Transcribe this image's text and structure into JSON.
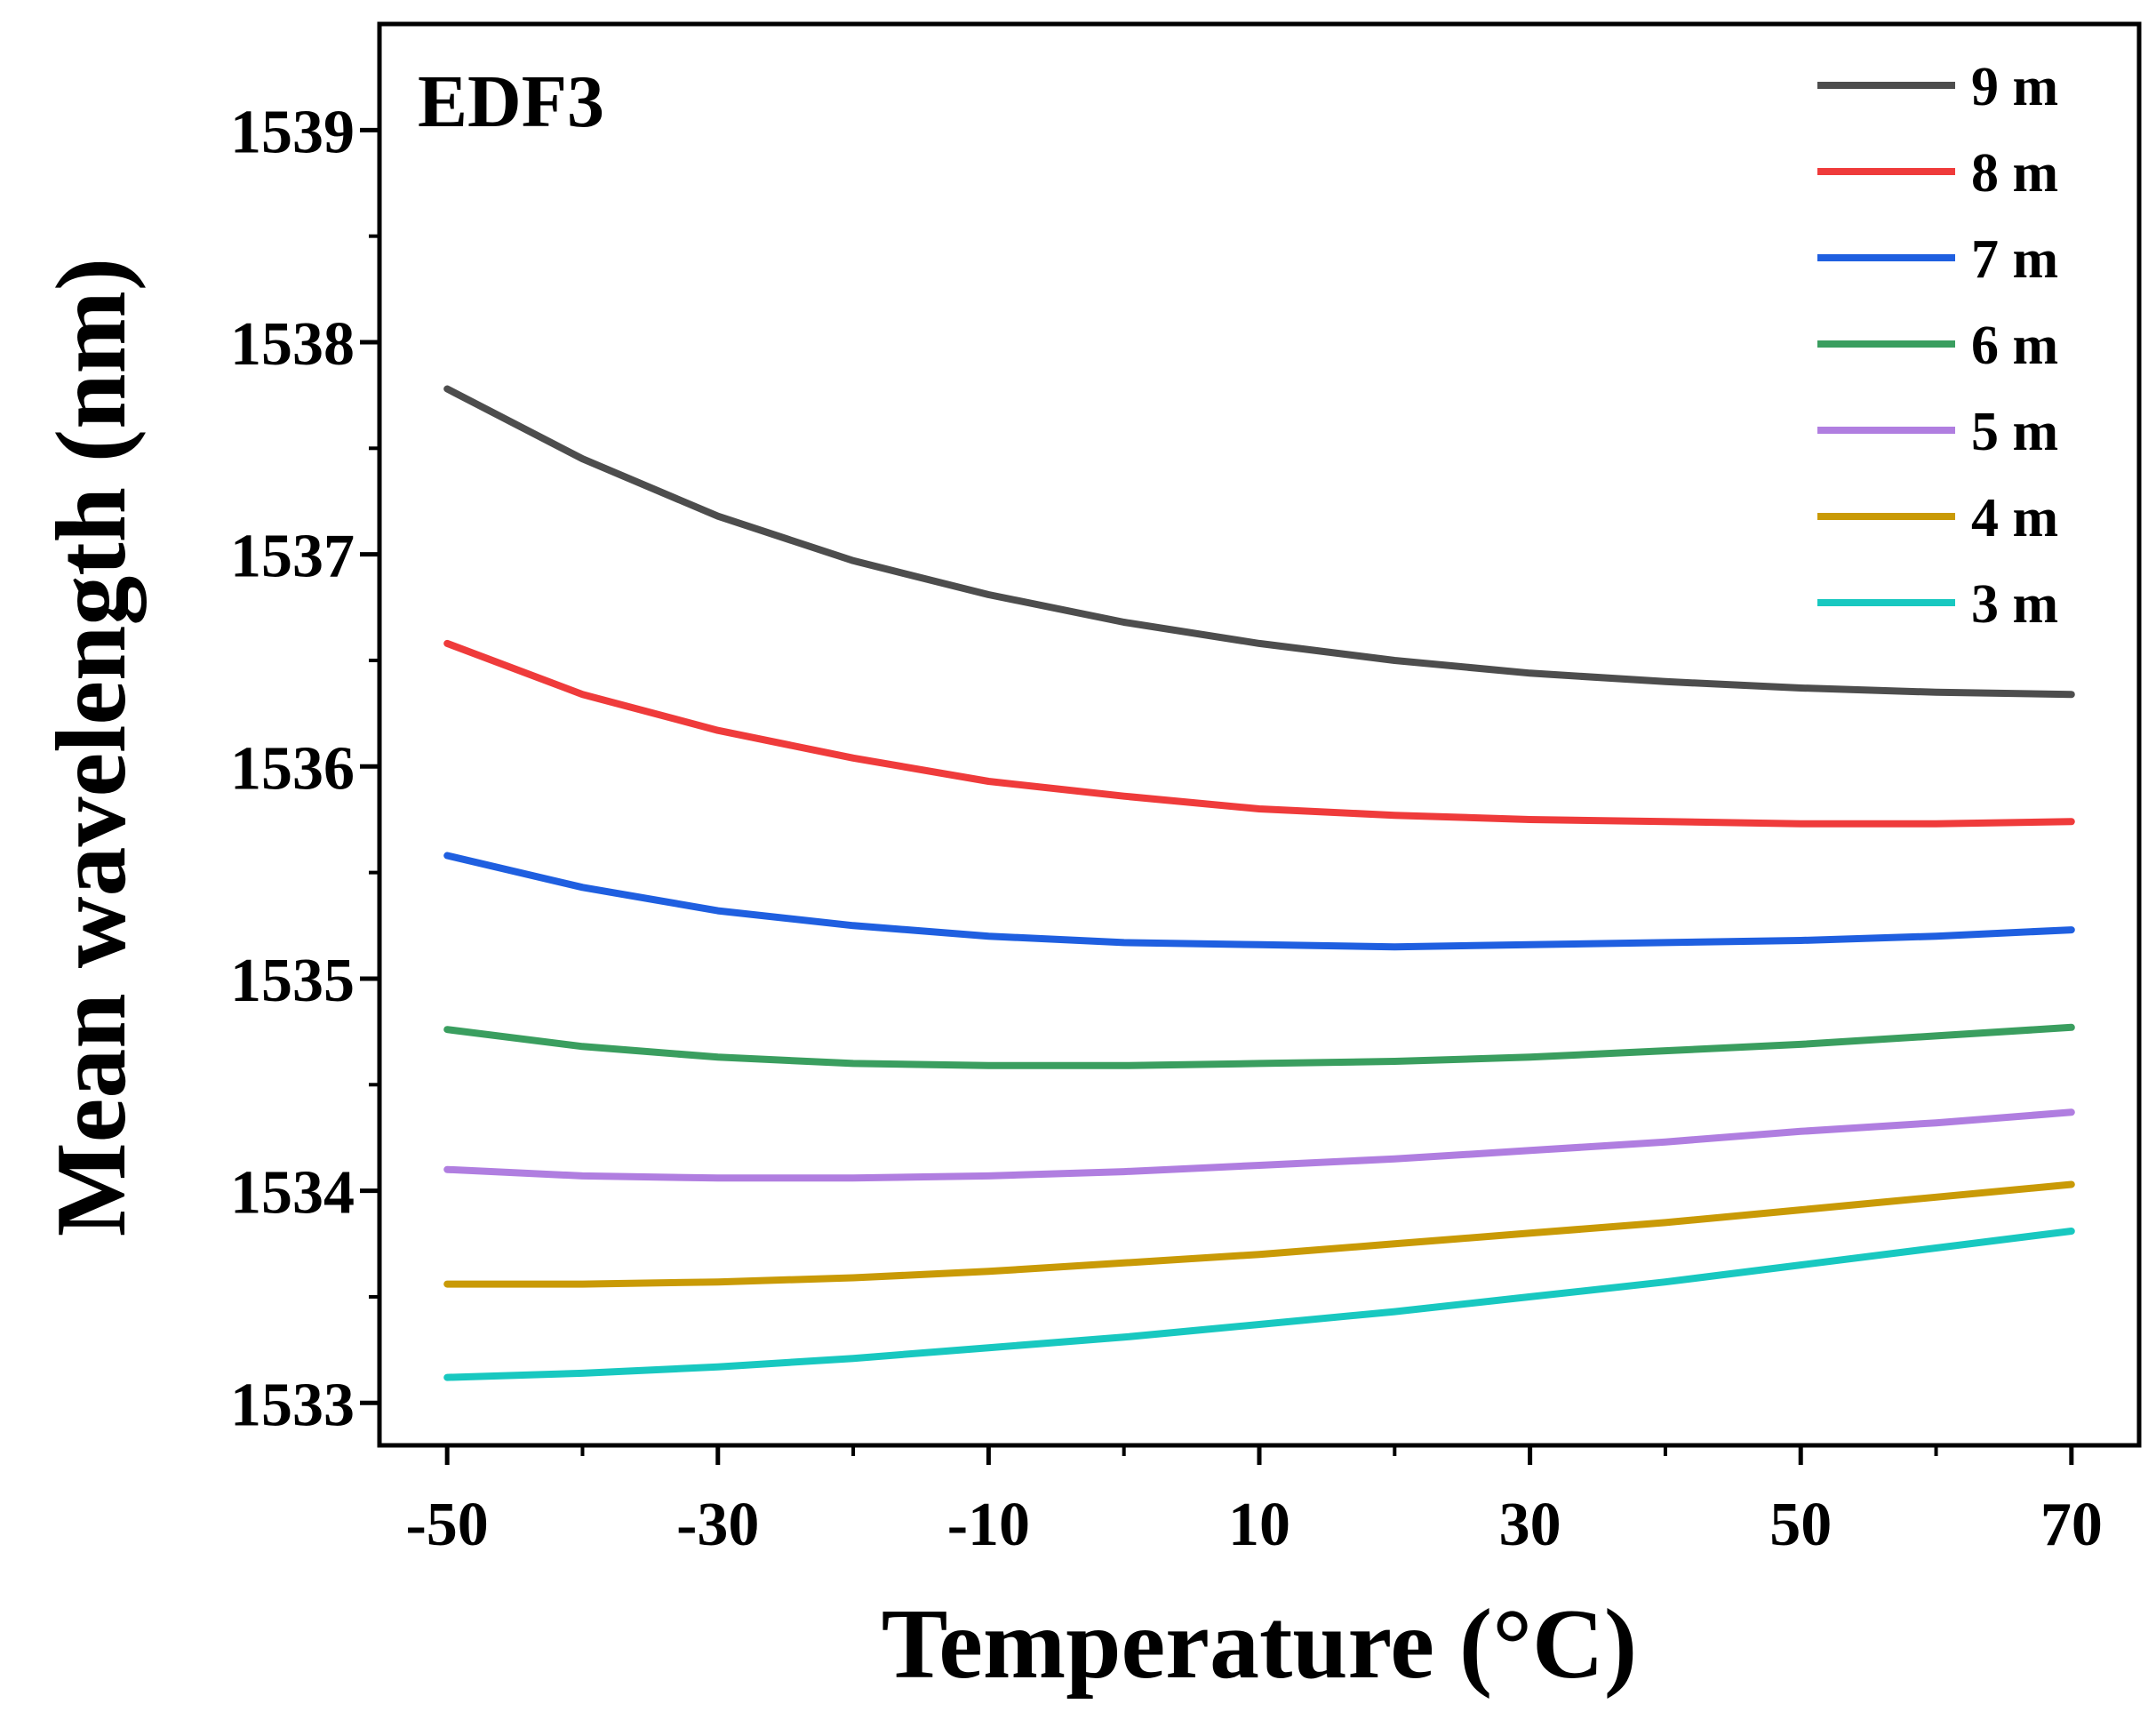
{
  "chart_data": {
    "type": "line",
    "title": "",
    "annotation": "EDF3",
    "xlabel": "Temperature (°C)",
    "ylabel": "Mean wavelength (nm)",
    "xlim": [
      -55,
      75
    ],
    "ylim": [
      1532.8,
      1539.5
    ],
    "xticks": [
      -50,
      -30,
      -10,
      10,
      30,
      50,
      70
    ],
    "yticks": [
      1533,
      1534,
      1535,
      1536,
      1537,
      1538,
      1539
    ],
    "legend_position": "top-right",
    "x": [
      -50,
      -40,
      -30,
      -20,
      -10,
      0,
      10,
      20,
      30,
      40,
      50,
      60,
      70
    ],
    "series": [
      {
        "name": "9 m",
        "color": "#4d4d4d",
        "values": [
          1537.78,
          1537.45,
          1537.18,
          1536.97,
          1536.81,
          1536.68,
          1536.58,
          1536.5,
          1536.44,
          1536.4,
          1536.37,
          1536.35,
          1536.34
        ]
      },
      {
        "name": "8 m",
        "color": "#ef3b3b",
        "values": [
          1536.58,
          1536.34,
          1536.17,
          1536.04,
          1535.93,
          1535.86,
          1535.8,
          1535.77,
          1535.75,
          1535.74,
          1535.73,
          1535.73,
          1535.74
        ]
      },
      {
        "name": "7 m",
        "color": "#1f5fe0",
        "values": [
          1535.58,
          1535.43,
          1535.32,
          1535.25,
          1535.2,
          1535.17,
          1535.16,
          1535.15,
          1535.16,
          1535.17,
          1535.18,
          1535.2,
          1535.23
        ]
      },
      {
        "name": "6 m",
        "color": "#3a9e5f",
        "values": [
          1534.76,
          1534.68,
          1534.63,
          1534.6,
          1534.59,
          1534.59,
          1534.6,
          1534.61,
          1534.63,
          1534.66,
          1534.69,
          1534.73,
          1534.77
        ]
      },
      {
        "name": "5 m",
        "color": "#b07ee0",
        "values": [
          1534.1,
          1534.07,
          1534.06,
          1534.06,
          1534.07,
          1534.09,
          1534.12,
          1534.15,
          1534.19,
          1534.23,
          1534.28,
          1534.32,
          1534.37
        ]
      },
      {
        "name": "4 m",
        "color": "#c99a06",
        "values": [
          1533.56,
          1533.56,
          1533.57,
          1533.59,
          1533.62,
          1533.66,
          1533.7,
          1533.75,
          1533.8,
          1533.85,
          1533.91,
          1533.97,
          1534.03
        ]
      },
      {
        "name": "3 m",
        "color": "#18c8c0",
        "values": [
          1533.12,
          1533.14,
          1533.17,
          1533.21,
          1533.26,
          1533.31,
          1533.37,
          1533.43,
          1533.5,
          1533.57,
          1533.65,
          1533.73,
          1533.81
        ]
      }
    ]
  }
}
